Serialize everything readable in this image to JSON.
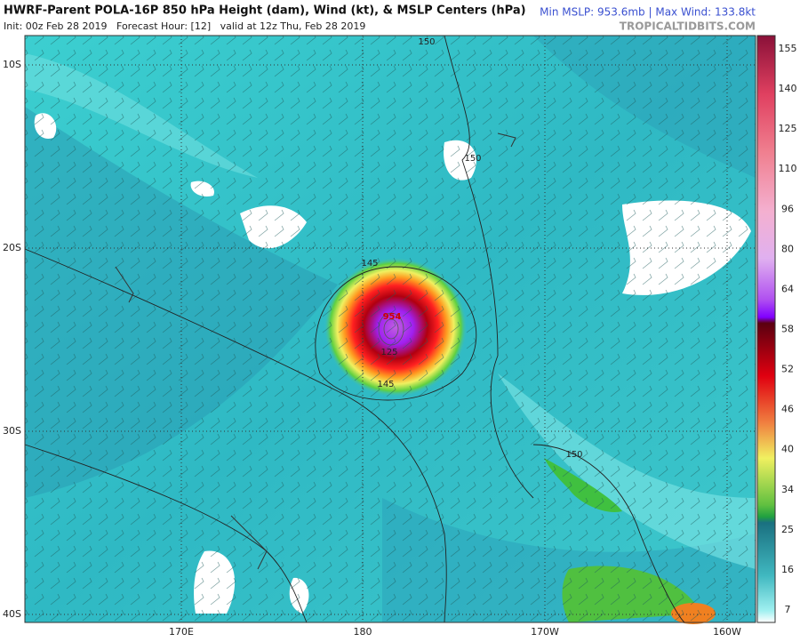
{
  "header": {
    "title": "HWRF-Parent POLA-16P 850 hPa Height (dam), Wind (kt), & MSLP Centers (hPa)",
    "subtitle": "Init: 00z Feb 28 2019   Forecast Hour: [12]   valid at 12z Thu, Feb 28 2019",
    "stats": "Min MSLP: 953.6mb | Max Wind: 133.8kt",
    "site": "TROPICALTIDBITS.COM"
  },
  "map": {
    "lat_labels": [
      "10S",
      "20S",
      "30S",
      "40S"
    ],
    "lon_labels": [
      "170E",
      "180",
      "170W",
      "160W"
    ],
    "contour_labels": [
      "150",
      "150",
      "145",
      "145",
      "150",
      "954",
      "125"
    ]
  },
  "colorbar": {
    "ticks": [
      155,
      140,
      125,
      110,
      96,
      80,
      64,
      58,
      52,
      46,
      40,
      34,
      25,
      16,
      7
    ]
  }
}
